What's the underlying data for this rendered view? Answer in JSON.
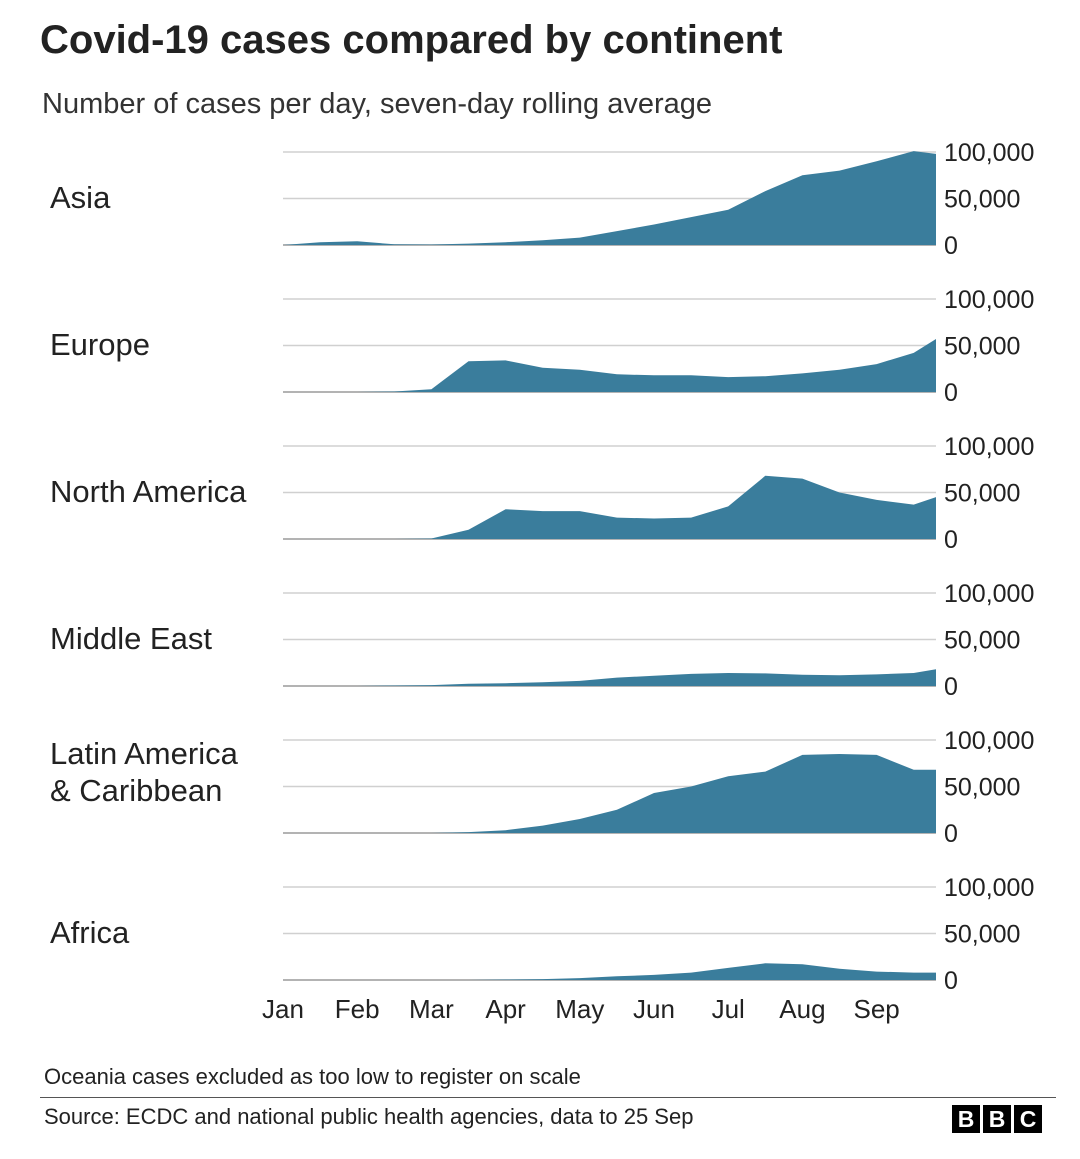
{
  "title": "Covid-19 cases compared by continent",
  "subtitle": "Number of cases per day, seven-day rolling average",
  "footnote": "Oceania cases excluded as too low to register on scale",
  "source": "Source: ECDC and national public health agencies, data to 25 Sep",
  "logo": [
    "B",
    "B",
    "C"
  ],
  "colors": {
    "area": "#3a7d9c",
    "grid": "#d0d0d0",
    "text": "#222222"
  },
  "chart_data": {
    "type": "area",
    "layout": "small-multiples",
    "x_ticks": [
      "Jan",
      "Feb",
      "Mar",
      "Apr",
      "May",
      "Jun",
      "Jul",
      "Aug",
      "Sep"
    ],
    "x_range": [
      "1 Jan",
      "25 Sep"
    ],
    "y_ticks": [
      0,
      50000,
      100000
    ],
    "y_tick_labels": [
      "0",
      "50,000",
      "100,000"
    ],
    "ylim": [
      0,
      100000
    ],
    "grid": true,
    "x": [
      0,
      0.5,
      1,
      1.5,
      2,
      2.5,
      3,
      3.5,
      4,
      4.5,
      5,
      5.5,
      6,
      6.5,
      7,
      7.5,
      8,
      8.5,
      8.8
    ],
    "series": [
      {
        "name": "Asia",
        "label_lines": [
          "Asia"
        ],
        "values": [
          0,
          3000,
          4000,
          800,
          500,
          1500,
          3000,
          5000,
          8000,
          15000,
          22000,
          30000,
          38000,
          58000,
          75000,
          80000,
          90000,
          101000,
          98000
        ]
      },
      {
        "name": "Europe",
        "label_lines": [
          "Europe"
        ],
        "values": [
          0,
          0,
          0,
          500,
          3000,
          33000,
          34000,
          26000,
          24000,
          19000,
          18000,
          18000,
          16000,
          17000,
          20000,
          24000,
          30000,
          42000,
          57000
        ]
      },
      {
        "name": "North America",
        "label_lines": [
          "North America"
        ],
        "values": [
          0,
          0,
          0,
          0,
          500,
          10000,
          32000,
          30000,
          30000,
          23000,
          22000,
          23000,
          35000,
          68000,
          65000,
          50000,
          42000,
          37000,
          45000
        ]
      },
      {
        "name": "Middle East",
        "label_lines": [
          "Middle East"
        ],
        "values": [
          0,
          0,
          0,
          500,
          1000,
          2500,
          3000,
          4000,
          5500,
          9000,
          11000,
          13000,
          14000,
          13500,
          12000,
          11500,
          12500,
          14000,
          18000
        ]
      },
      {
        "name": "Latin America & Caribbean",
        "label_lines": [
          "Latin America",
          "& Caribbean"
        ],
        "values": [
          0,
          0,
          0,
          0,
          0,
          1000,
          3000,
          8000,
          15000,
          25000,
          43000,
          50000,
          61000,
          66000,
          84000,
          85000,
          84000,
          68000,
          68000
        ]
      },
      {
        "name": "Africa",
        "label_lines": [
          "Africa"
        ],
        "values": [
          0,
          0,
          0,
          0,
          0,
          0,
          500,
          1000,
          2000,
          4000,
          5500,
          8000,
          13000,
          18000,
          17000,
          12000,
          9000,
          8000,
          8000
        ]
      }
    ]
  }
}
